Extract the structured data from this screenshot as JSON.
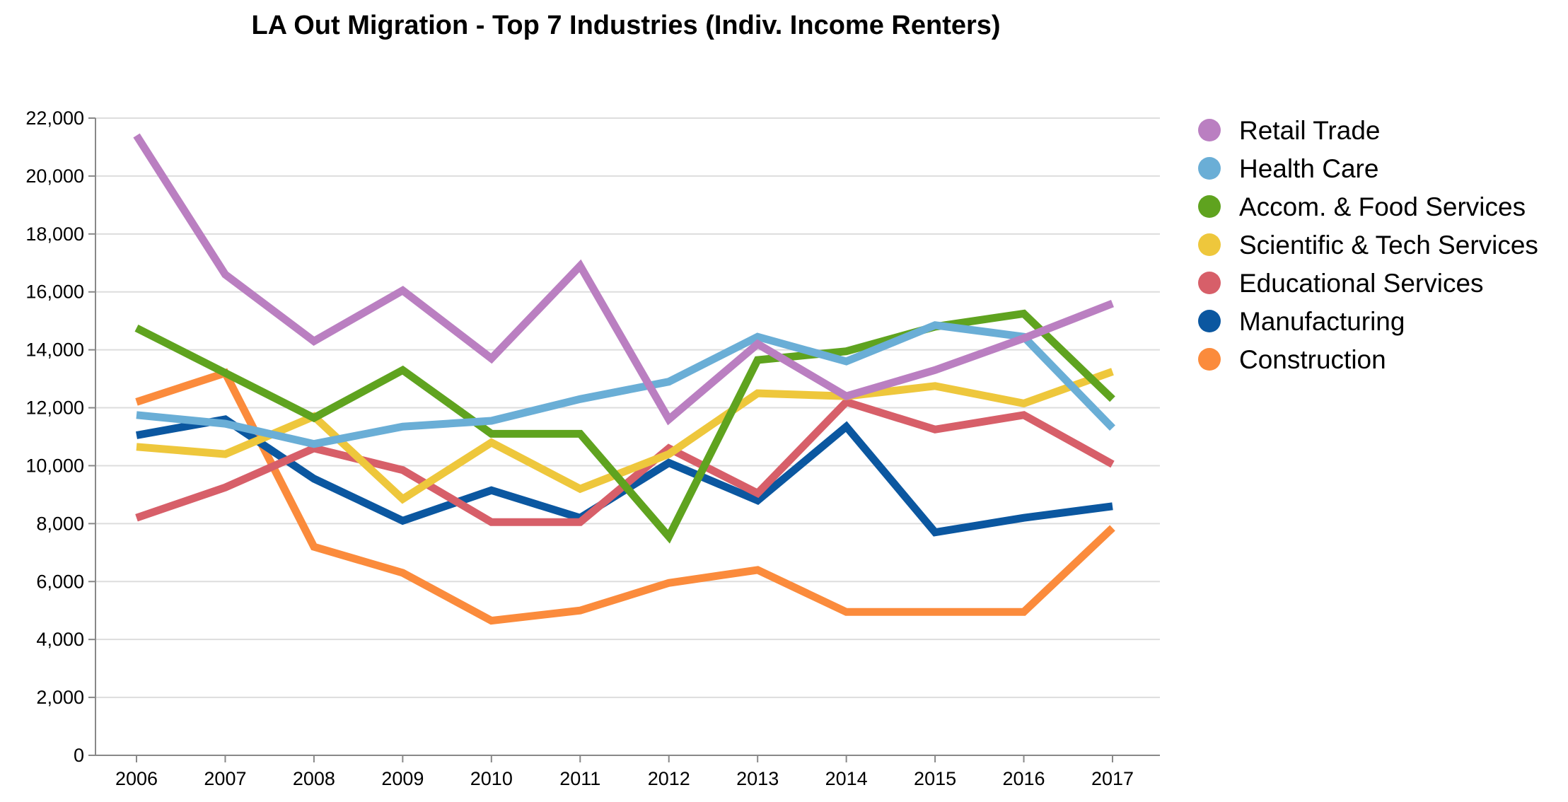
{
  "chart_data": {
    "type": "line",
    "title": "LA Out Migration - Top 7 Industries (Indiv. Income Renters)",
    "xlabel": "",
    "ylabel": "",
    "x": [
      "2006",
      "2007",
      "2008",
      "2009",
      "2010",
      "2011",
      "2012",
      "2013",
      "2014",
      "2015",
      "2016",
      "2017"
    ],
    "ylim": [
      0,
      22000
    ],
    "yticks": [
      0,
      2000,
      4000,
      6000,
      8000,
      10000,
      12000,
      14000,
      16000,
      18000,
      20000,
      22000
    ],
    "ytick_labels": [
      "0",
      "2,000",
      "4,000",
      "6,000",
      "8,000",
      "10,000",
      "12,000",
      "14,000",
      "16,000",
      "18,000",
      "20,000",
      "22,000"
    ],
    "grid": true,
    "legend_position": "right",
    "series": [
      {
        "name": "Retail Trade",
        "color": "#ba7fc1",
        "values": [
          21400,
          16600,
          14300,
          16050,
          13700,
          16900,
          11600,
          14200,
          12400,
          13300,
          14400,
          15600
        ]
      },
      {
        "name": "Health Care",
        "color": "#6aaed6",
        "values": [
          11750,
          11450,
          10750,
          11350,
          11550,
          12300,
          12900,
          14450,
          13600,
          14850,
          14450,
          11300
        ]
      },
      {
        "name": "Accom. & Food Services",
        "color": "#5fa31f",
        "values": [
          14750,
          13200,
          11650,
          13300,
          11100,
          11100,
          7550,
          13650,
          13950,
          14800,
          15250,
          12300
        ]
      },
      {
        "name": "Scientific & Tech Services",
        "color": "#eec73c",
        "values": [
          10650,
          10400,
          11700,
          8850,
          10800,
          9200,
          10400,
          12500,
          12400,
          12750,
          12150,
          13250
        ]
      },
      {
        "name": "Educational Services",
        "color": "#d75f69",
        "values": [
          8200,
          9250,
          10600,
          9850,
          8050,
          8050,
          10600,
          9050,
          12200,
          11250,
          11750,
          10050
        ]
      },
      {
        "name": "Manufacturing",
        "color": "#0b57a0",
        "values": [
          11050,
          11600,
          9550,
          8100,
          9150,
          8200,
          10100,
          8800,
          11350,
          7700,
          8200,
          8600
        ]
      },
      {
        "name": "Construction",
        "color": "#fb8b3c",
        "values": [
          12200,
          13200,
          7200,
          6300,
          4650,
          5000,
          5950,
          6400,
          4950,
          4950,
          4950,
          7850
        ]
      }
    ]
  }
}
